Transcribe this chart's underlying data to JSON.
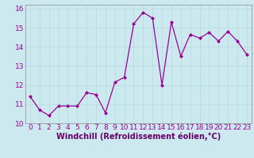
{
  "x": [
    0,
    1,
    2,
    3,
    4,
    5,
    6,
    7,
    8,
    9,
    10,
    11,
    12,
    13,
    14,
    15,
    16,
    17,
    18,
    19,
    20,
    21,
    22,
    23
  ],
  "y": [
    11.4,
    10.7,
    10.4,
    10.9,
    10.9,
    10.9,
    11.6,
    11.5,
    10.55,
    12.15,
    12.4,
    15.2,
    15.8,
    15.5,
    12.0,
    15.3,
    13.5,
    14.65,
    14.45,
    14.75,
    14.3,
    14.8,
    14.3,
    13.6
  ],
  "line_color": "#990099",
  "marker": "D",
  "marker_size": 2.0,
  "bg_color": "#cce9f0",
  "grid_color": "#bbdddd",
  "xlabel": "Windchill (Refroidissement éolien,°C)",
  "xlabel_color": "#660066",
  "xlabel_fontsize": 7,
  "tick_fontsize": 6.5,
  "xlim": [
    -0.5,
    23.5
  ],
  "ylim": [
    10.0,
    16.2
  ],
  "yticks": [
    10,
    11,
    12,
    13,
    14,
    15,
    16
  ],
  "xticks": [
    0,
    1,
    2,
    3,
    4,
    5,
    6,
    7,
    8,
    9,
    10,
    11,
    12,
    13,
    14,
    15,
    16,
    17,
    18,
    19,
    20,
    21,
    22,
    23
  ]
}
